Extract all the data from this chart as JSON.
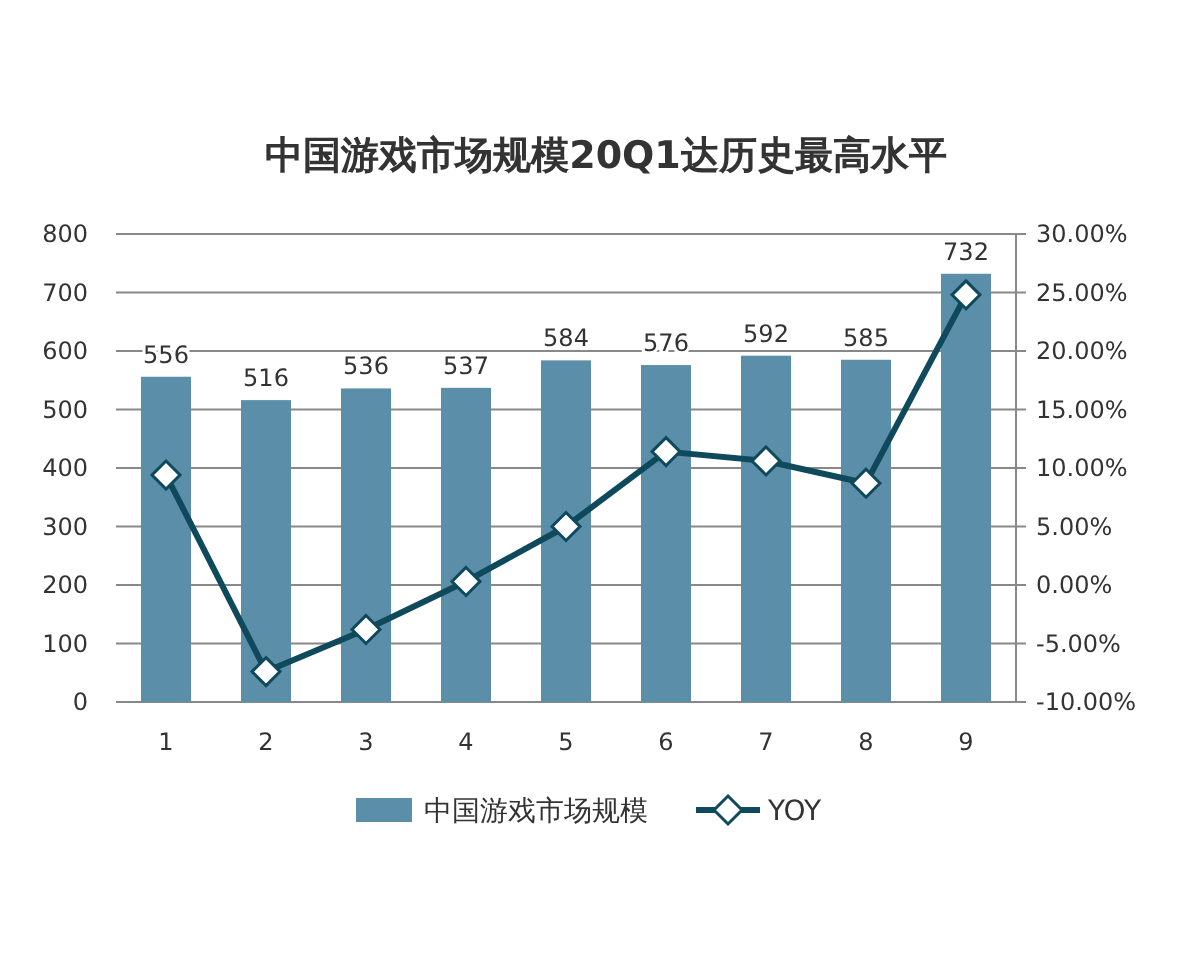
{
  "chart_data": {
    "type": "bar",
    "title": "中国游戏市场规模20Q1达历史最高水平",
    "categories": [
      "1",
      "2",
      "3",
      "4",
      "5",
      "6",
      "7",
      "8",
      "9"
    ],
    "series": [
      {
        "name": "中国游戏市场规模",
        "color": "#5b8ea8",
        "values": [
          556,
          516,
          536,
          537,
          584,
          576,
          592,
          585,
          732
        ],
        "value_labels": [
          "556",
          "516",
          "536",
          "537",
          "584",
          "576",
          "592",
          "585",
          "732"
        ]
      },
      {
        "name": "YOY",
        "type": "line",
        "axis": "y2",
        "color": "#0f4a5c",
        "marker": "diamond",
        "values": [
          9.4,
          -7.4,
          -3.8,
          0.3,
          5.0,
          11.4,
          10.6,
          8.7,
          24.8
        ]
      }
    ],
    "ylim": [
      0,
      800
    ],
    "yticks": [
      0,
      100,
      200,
      300,
      400,
      500,
      600,
      700,
      800
    ],
    "y2lim": [
      -10,
      30
    ],
    "y2ticks": [
      {
        "value": -10,
        "label": "-10.00%"
      },
      {
        "value": -5,
        "label": "-5.00%"
      },
      {
        "value": 0,
        "label": "0.00%"
      },
      {
        "value": 5,
        "label": "5.00%"
      },
      {
        "value": 10,
        "label": "10.00%"
      },
      {
        "value": 15,
        "label": "15.00%"
      },
      {
        "value": 20,
        "label": "20.00%"
      },
      {
        "value": 25,
        "label": "25.00%"
      },
      {
        "value": 30,
        "label": "30.00%"
      }
    ],
    "grid": "y",
    "legend": "bottom"
  }
}
